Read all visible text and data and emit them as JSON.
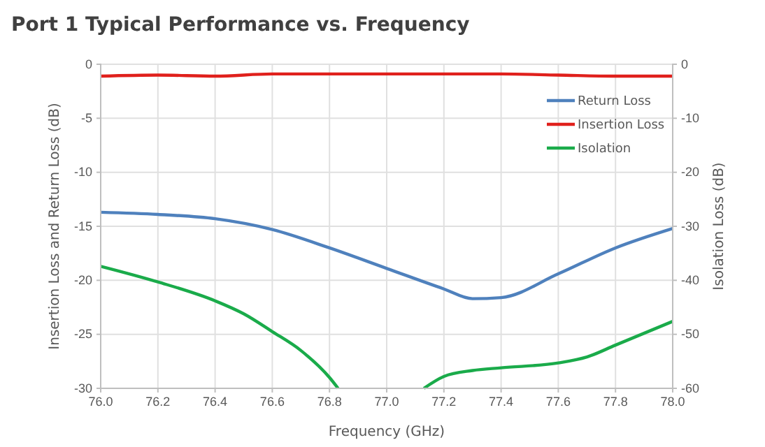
{
  "chart_data": {
    "type": "line",
    "title": "Port 1 Typical Performance vs. Frequency",
    "xlabel": "Frequency (GHz)",
    "ylabel": "Insertion Loss and Return Loss (dB)",
    "y2label": "Isolation Loss (dB)",
    "xlim": [
      76.0,
      78.0
    ],
    "xticks": [
      {
        "value": 76.0,
        "label": "76.0"
      },
      {
        "value": 76.2,
        "label": "76.2"
      },
      {
        "value": 76.4,
        "label": "76.4"
      },
      {
        "value": 76.6,
        "label": "76.6"
      },
      {
        "value": 76.8,
        "label": "76.8"
      },
      {
        "value": 77.0,
        "label": "77.0"
      },
      {
        "value": 77.2,
        "label": "77.2"
      },
      {
        "value": 77.4,
        "label": "77.4"
      },
      {
        "value": 77.6,
        "label": "77.6"
      },
      {
        "value": 77.8,
        "label": "77.8"
      },
      {
        "value": 78.0,
        "label": "78.0"
      }
    ],
    "ylim": [
      -30,
      0
    ],
    "yticks": [
      -30,
      -25,
      -20,
      -15,
      -10,
      -5,
      0
    ],
    "y2lim": [
      -60,
      0
    ],
    "y2ticks": [
      -60,
      -50,
      -40,
      -30,
      -20,
      -10,
      0
    ],
    "grid": true,
    "legend": "top right",
    "line_style": "solid",
    "marker": "none",
    "series": [
      {
        "name": "Return Loss",
        "color": "#4f81bd",
        "x": [
          76.0,
          76.2,
          76.4,
          76.6,
          76.8,
          77.0,
          77.2,
          77.3,
          77.4,
          77.6,
          77.8,
          78.0
        ],
        "values": [
          -13.7,
          -13.9,
          -14.3,
          -15.3,
          -17.0,
          -18.9,
          -20.8,
          -21.7,
          -21.6,
          -19.4,
          -17.0,
          -15.2
        ]
      },
      {
        "name": "Insertion Loss",
        "color": "#e0201c",
        "x": [
          76.0,
          76.2,
          76.4,
          76.6,
          76.8,
          77.0,
          77.2,
          77.4,
          77.6,
          77.8,
          78.0
        ],
        "values": [
          -1.1,
          -1.0,
          -1.1,
          -0.9,
          -0.9,
          -0.9,
          -0.9,
          -0.9,
          -1.0,
          -1.1,
          -1.1
        ]
      },
      {
        "name": "Isolation",
        "color": "#1aab4a",
        "axis": "y2",
        "x": [
          76.0,
          76.2,
          76.4,
          76.5,
          76.6,
          76.7,
          76.8,
          76.83,
          77.0,
          77.13,
          77.2,
          77.3,
          77.4,
          77.6,
          77.7,
          77.8,
          78.0
        ],
        "values": [
          -37.4,
          -40.3,
          -43.8,
          -46.2,
          -49.5,
          -53.0,
          -58.0,
          -60.0,
          null,
          -60.0,
          -57.8,
          -56.7,
          -56.2,
          -55.3,
          -54.2,
          -52.0,
          -47.6
        ]
      }
    ]
  }
}
